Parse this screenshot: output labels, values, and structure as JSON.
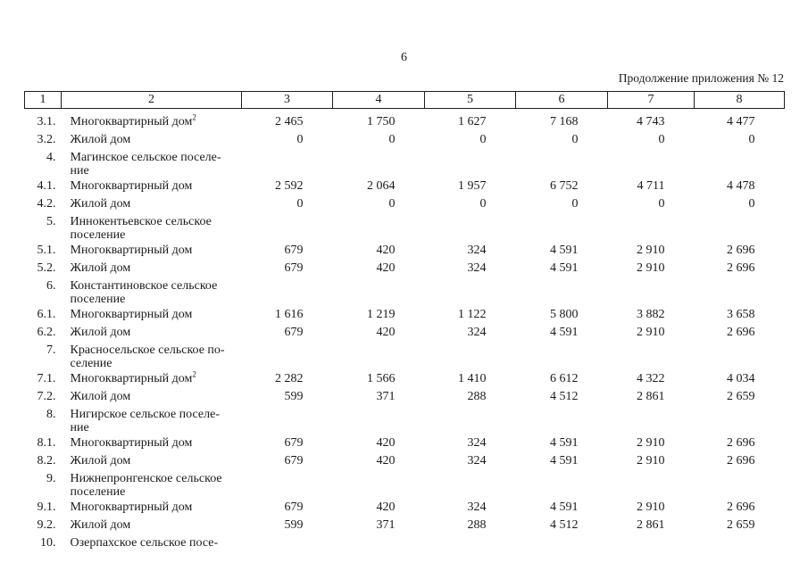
{
  "page": {
    "number": "6",
    "continuation_note": "Продолжение приложения № 12"
  },
  "table": {
    "column_numbers": [
      "1",
      "2",
      "3",
      "4",
      "5",
      "6",
      "7",
      "8"
    ],
    "rows": [
      {
        "type": "data",
        "num": "3.1.",
        "name": "Многоквартирный дом",
        "sup": "2",
        "values": [
          "2 465",
          "1 750",
          "1 627",
          "7 168",
          "4 743",
          "4 477"
        ]
      },
      {
        "type": "data",
        "num": "3.2.",
        "name": "Жилой дом",
        "values": [
          "0",
          "0",
          "0",
          "0",
          "0",
          "0"
        ]
      },
      {
        "type": "section",
        "num": "4.",
        "name": "Магинское сельское поселе-\nние"
      },
      {
        "type": "data",
        "num": "4.1.",
        "name": "Многоквартирный дом",
        "values": [
          "2 592",
          "2 064",
          "1 957",
          "6 752",
          "4 711",
          "4 478"
        ]
      },
      {
        "type": "data",
        "num": "4.2.",
        "name": "Жилой дом",
        "values": [
          "0",
          "0",
          "0",
          "0",
          "0",
          "0"
        ]
      },
      {
        "type": "section",
        "num": "5.",
        "name": "Иннокентьевское сельское\nпоселение"
      },
      {
        "type": "data",
        "num": "5.1.",
        "name": "Многоквартирный дом",
        "values": [
          "679",
          "420",
          "324",
          "4 591",
          "2 910",
          "2 696"
        ]
      },
      {
        "type": "data",
        "num": "5.2.",
        "name": "Жилой дом",
        "values": [
          "679",
          "420",
          "324",
          "4 591",
          "2 910",
          "2 696"
        ]
      },
      {
        "type": "section",
        "num": "6.",
        "name": "Константиновское сельское\nпоселение"
      },
      {
        "type": "data",
        "num": "6.1.",
        "name": "Многоквартирный дом",
        "values": [
          "1 616",
          "1 219",
          "1 122",
          "5 800",
          "3 882",
          "3 658"
        ]
      },
      {
        "type": "data",
        "num": "6.2.",
        "name": "Жилой дом",
        "values": [
          "679",
          "420",
          "324",
          "4 591",
          "2 910",
          "2 696"
        ]
      },
      {
        "type": "section",
        "num": "7.",
        "name": "Красносельское сельское по-\nселение"
      },
      {
        "type": "data",
        "num": "7.1.",
        "name": "Многоквартирный дом",
        "sup": "2",
        "values": [
          "2 282",
          "1 566",
          "1 410",
          "6 612",
          "4 322",
          "4 034"
        ]
      },
      {
        "type": "data",
        "num": "7.2.",
        "name": "Жилой дом",
        "values": [
          "599",
          "371",
          "288",
          "4 512",
          "2 861",
          "2 659"
        ]
      },
      {
        "type": "section",
        "num": "8.",
        "name": "Нигирское сельское поселе-\nние"
      },
      {
        "type": "data",
        "num": "8.1.",
        "name": "Многоквартирный дом",
        "values": [
          "679",
          "420",
          "324",
          "4 591",
          "2 910",
          "2 696"
        ]
      },
      {
        "type": "data",
        "num": "8.2.",
        "name": "Жилой дом",
        "values": [
          "679",
          "420",
          "324",
          "4 591",
          "2 910",
          "2 696"
        ]
      },
      {
        "type": "section",
        "num": "9.",
        "name": "Нижнепронгенское сельское\nпоселение"
      },
      {
        "type": "data",
        "num": "9.1.",
        "name": "Многоквартирный дом",
        "values": [
          "679",
          "420",
          "324",
          "4 591",
          "2 910",
          "2 696"
        ]
      },
      {
        "type": "data",
        "num": "9.2.",
        "name": "Жилой дом",
        "values": [
          "599",
          "371",
          "288",
          "4 512",
          "2 861",
          "2 659"
        ]
      },
      {
        "type": "section",
        "num": "10.",
        "name": "Озерпахское сельское посе-"
      }
    ]
  }
}
